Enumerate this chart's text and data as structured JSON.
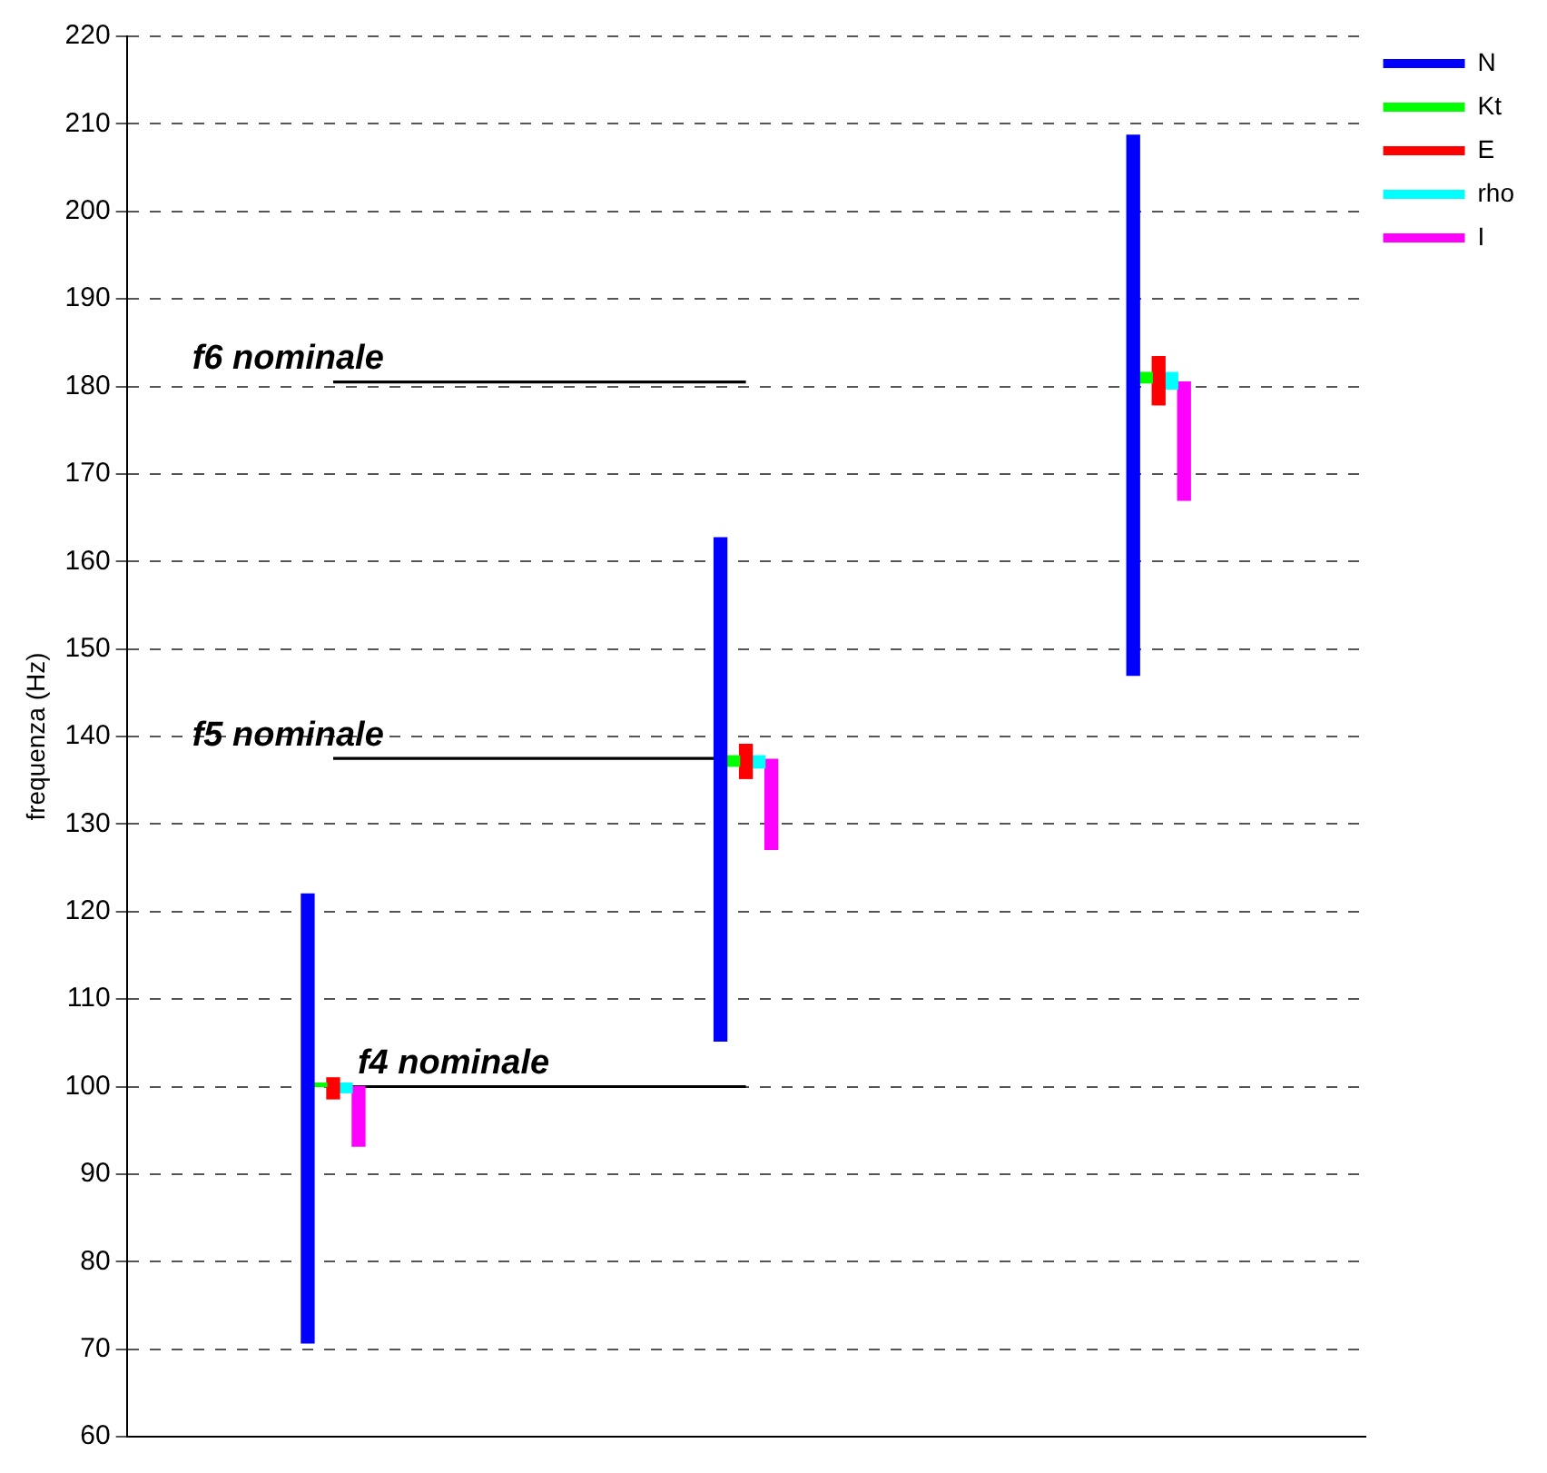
{
  "chart_data": {
    "type": "bar",
    "ylabel": "frequenza (Hz)",
    "categories": [
      null,
      null,
      null
    ],
    "series": [
      {
        "name": "N",
        "color": "#0000ff",
        "base": [
          70.7,
          105.2,
          147
        ],
        "values": [
          51.3,
          57.5,
          61.7
        ]
      },
      {
        "name": "Kt",
        "color": "#00ff00",
        "base": [
          100,
          136.6,
          180.4
        ],
        "values": [
          0.4,
          1.2,
          1.2
        ]
      },
      {
        "name": "E",
        "color": "#ff0000",
        "base": [
          98.6,
          135.2,
          177.9
        ],
        "values": [
          2.4,
          3.9,
          5.5
        ]
      },
      {
        "name": "rho",
        "color": "#00ffff",
        "base": [
          99.3,
          136.4,
          179.7
        ],
        "values": [
          1.1,
          1.4,
          1.9
        ]
      },
      {
        "name": "I",
        "color": "#ff00ff",
        "base": [
          93.2,
          127.1,
          167
        ],
        "values": [
          6.8,
          10.3,
          13.5
        ]
      }
    ],
    "ylim": [
      60,
      220
    ],
    "yticks": [
      60,
      70,
      80,
      90,
      100,
      110,
      120,
      130,
      140,
      150,
      160,
      170,
      180,
      190,
      200,
      210,
      220
    ],
    "grid": "y",
    "legend": "top right",
    "tick_labels": "y",
    "ref_lines": [
      {
        "axis": "y",
        "value": 100,
        "label": "f4 nominale",
        "color": "#000000"
      },
      {
        "axis": "y",
        "value": 137.5,
        "label": "f5 nominale",
        "color": "#000000"
      },
      {
        "axis": "y",
        "value": 180.5,
        "label": "f6 nominale",
        "color": "#000000"
      }
    ]
  }
}
